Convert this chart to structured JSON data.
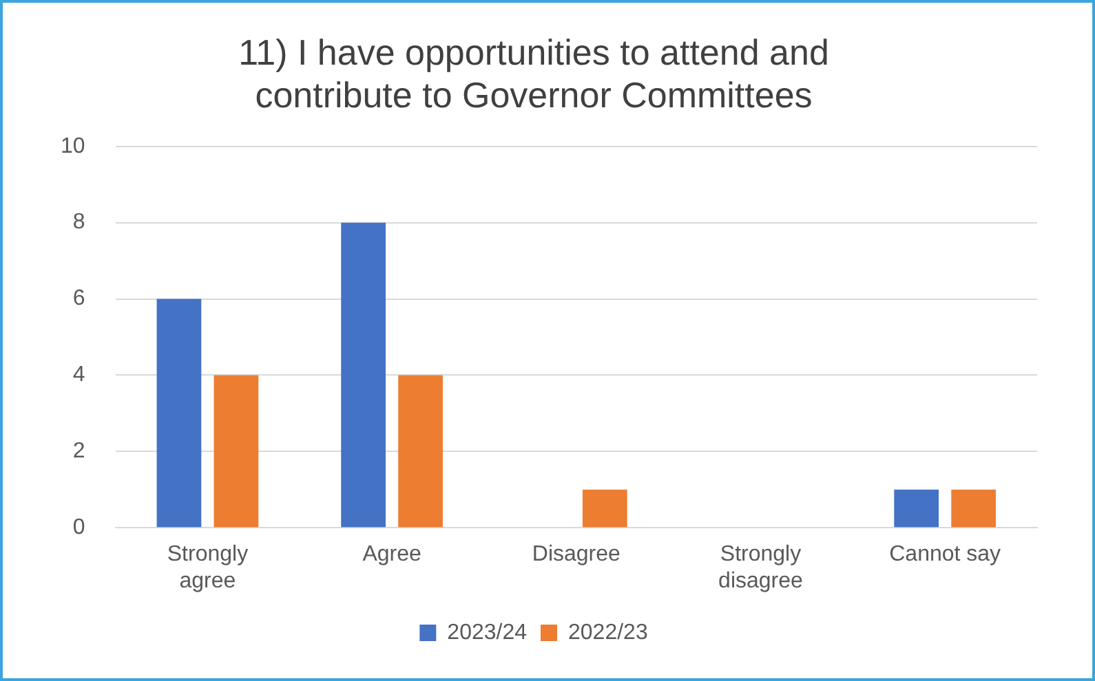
{
  "chart_data": {
    "type": "bar",
    "title": "11) I have opportunities to attend and contribute to Governor Committees",
    "categories": [
      "Strongly agree",
      "Agree",
      "Disagree",
      "Strongly disagree",
      "Cannot say"
    ],
    "series": [
      {
        "name": "2023/24",
        "color": "#4472c4",
        "values": [
          6,
          8,
          0,
          0,
          1
        ]
      },
      {
        "name": "2022/23",
        "color": "#ed7d31",
        "values": [
          4,
          4,
          1,
          0,
          1
        ]
      }
    ],
    "ylim": [
      0,
      10
    ],
    "yticks": [
      0,
      2,
      4,
      6,
      8,
      10
    ],
    "grid": "y",
    "legend": "bottom"
  }
}
